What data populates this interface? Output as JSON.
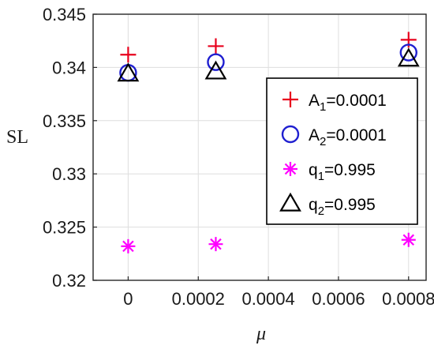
{
  "chart_data": {
    "type": "scatter",
    "title": "",
    "xlabel": "μ",
    "ylabel": "SL",
    "xlim": [
      -0.0001,
      0.00085
    ],
    "ylim": [
      0.32,
      0.345
    ],
    "xticks": [
      "0",
      "0.0002",
      "0.0004",
      "0.0006",
      "0.0008"
    ],
    "xtick_values": [
      0,
      0.0002,
      0.0004,
      0.0006,
      0.0008
    ],
    "yticks": [
      "0.32",
      "0.325",
      "0.33",
      "0.335",
      "0.34",
      "0.345"
    ],
    "ytick_values": [
      0.32,
      0.325,
      0.33,
      0.335,
      0.34,
      0.345
    ],
    "grid": true,
    "legend_position": "right",
    "series": [
      {
        "key": "A1",
        "name_base": "A",
        "name_sub": "1",
        "name_rest": "=0.0001",
        "marker": "plus",
        "color": "#e8001c",
        "x": [
          0,
          0.00025,
          0.0008
        ],
        "y": [
          0.3412,
          0.342,
          0.3426
        ]
      },
      {
        "key": "A2",
        "name_base": "A",
        "name_sub": "2",
        "name_rest": "=0.0001",
        "marker": "circle",
        "color": "#1f1fd0",
        "x": [
          0,
          0.00025,
          0.0008
        ],
        "y": [
          0.3395,
          0.3405,
          0.3414
        ]
      },
      {
        "key": "q1",
        "name_base": "q",
        "name_sub": "1",
        "name_rest": "=0.995",
        "marker": "asterisk",
        "color": "#ff00ff",
        "x": [
          0,
          0.00025,
          0.0008
        ],
        "y": [
          0.3232,
          0.3234,
          0.3238
        ]
      },
      {
        "key": "q2",
        "name_base": "q",
        "name_sub": "2",
        "name_rest": "=0.995",
        "marker": "triangle",
        "color": "#000000",
        "x": [
          0,
          0.00025,
          0.0008
        ],
        "y": [
          0.3394,
          0.3396,
          0.3408
        ]
      }
    ]
  }
}
